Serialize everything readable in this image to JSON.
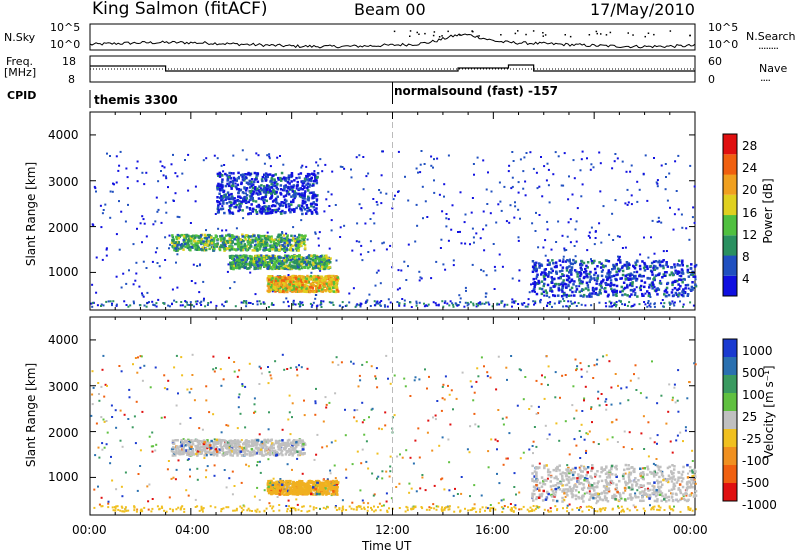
{
  "header": {
    "station": "King Salmon (fitACF)",
    "beam": "Beam 00",
    "date": "17/May/2010"
  },
  "top_panels": {
    "nsky_label": "N.Sky",
    "nsky_ticks": [
      "10^5",
      "10^0"
    ],
    "nsearch_ticks": [
      "10^5",
      "10^0"
    ],
    "nsearch_label": "N.Search",
    "nsearch_legend": "........",
    "freq_label": "Freq.",
    "freq_unit": "[MHz]",
    "freq_ticks": [
      "18",
      "8"
    ],
    "nave_ticks": [
      "60",
      "0"
    ],
    "nave_label": "Nave",
    "nave_legend": "....",
    "cpid_label": "CPID",
    "cpid_1": "themis 3300",
    "cpid_2": "normalsound (fast) -157"
  },
  "time_axis": {
    "ticks": [
      "00:00",
      "04:00",
      "08:00",
      "12:00",
      "16:00",
      "20:00",
      "00:00"
    ],
    "label": "Time UT"
  },
  "chart_data": [
    {
      "type": "heatmap",
      "panel": "power",
      "ylabel": "Slant Range [km]",
      "yticks": [
        1000,
        2000,
        3000,
        4000
      ],
      "ylim": [
        180,
        4500
      ],
      "xlim_hours": [
        0,
        24
      ],
      "colorbar_label": "Power [dB]",
      "colorbar_ticks": [
        "4",
        "8",
        "12",
        "16",
        "20",
        "24",
        "28"
      ],
      "colorbar_colors": [
        "#1010e0",
        "#2050c0",
        "#2a9060",
        "#50c040",
        "#e0d020",
        "#f0a020",
        "#f06010",
        "#e01010"
      ],
      "bands": [
        {
          "t0": 3.2,
          "t1": 8.5,
          "r0": 1500,
          "r1": 1850,
          "level": 3
        },
        {
          "t0": 5.5,
          "t1": 9.5,
          "r0": 1100,
          "r1": 1400,
          "level": 3
        },
        {
          "t0": 7.0,
          "t1": 9.8,
          "r0": 600,
          "r1": 950,
          "level": 5
        },
        {
          "t0": 17.5,
          "t1": 24.0,
          "r0": 500,
          "r1": 1300,
          "level": 1
        },
        {
          "t0": 5.0,
          "t1": 9.0,
          "r0": 2300,
          "r1": 3200,
          "level": 1
        }
      ]
    },
    {
      "type": "heatmap",
      "panel": "velocity",
      "ylabel": "Slant Range [km]",
      "yticks": [
        1000,
        2000,
        3000,
        4000
      ],
      "ylim": [
        180,
        4500
      ],
      "xlim_hours": [
        0,
        24
      ],
      "colorbar_label": "Velocity [m s⁻¹]",
      "colorbar_ticks": [
        "1000",
        "500",
        "100",
        "25",
        "-25",
        "-100",
        "-500",
        "-1000"
      ],
      "colorbar_colors": [
        "#1a3ad0",
        "#2a70b0",
        "#3a9a60",
        "#60c040",
        "#c0c0c0",
        "#f0c020",
        "#f09020",
        "#f06010",
        "#e01010"
      ],
      "bands": [
        {
          "t0": 3.2,
          "t1": 8.5,
          "r0": 1500,
          "r1": 1850,
          "color": "#c0c0c0"
        },
        {
          "t0": 7.0,
          "t1": 9.8,
          "r0": 650,
          "r1": 950,
          "color": "#f0b020"
        },
        {
          "t0": 17.5,
          "t1": 24.0,
          "r0": 500,
          "r1": 1300,
          "color": "#c0c0c0"
        }
      ]
    }
  ]
}
